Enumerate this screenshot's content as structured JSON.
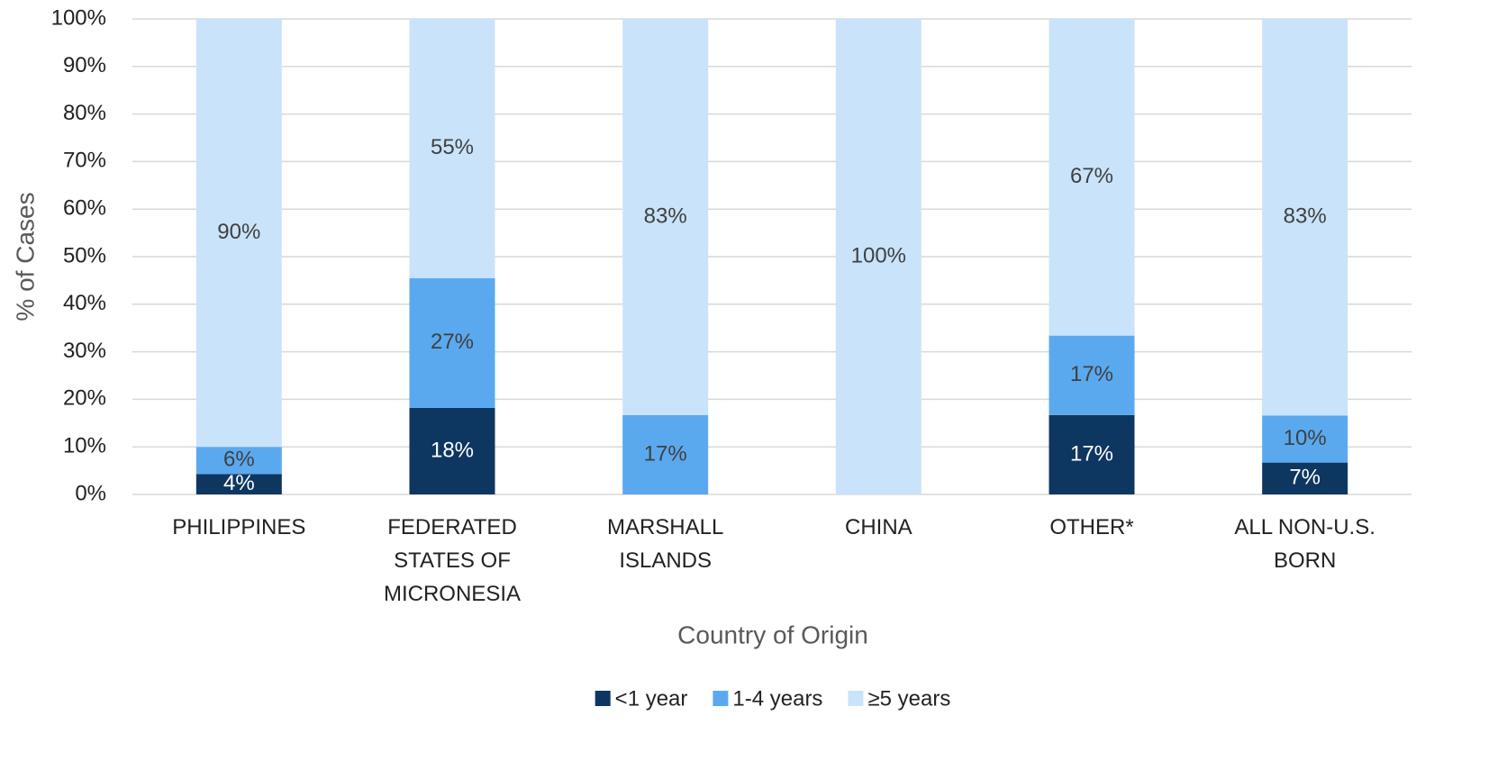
{
  "chart_data": {
    "type": "stacked_bar",
    "categories": [
      "PHILIPPINES",
      "FEDERATED STATES OF MICRONESIA",
      "MARSHALL ISLANDS",
      "CHINA",
      "OTHER*",
      "ALL NON-U.S. BORN"
    ],
    "series": [
      {
        "name": "<1 year",
        "color": "#0d3761",
        "values": [
          4.3,
          18.2,
          0,
          0,
          16.7,
          6.7
        ],
        "value_labels": [
          "4%",
          "18%",
          null,
          null,
          "17%",
          "7%"
        ]
      },
      {
        "name": "1-4 years",
        "color": "#5aa9ef",
        "values": [
          5.7,
          27.3,
          16.7,
          0,
          16.7,
          9.9
        ],
        "value_labels": [
          "6%",
          "27%",
          "17%",
          null,
          "17%",
          "10%"
        ]
      },
      {
        "name": "≥5 years",
        "color": "#c9e3fa",
        "values": [
          90,
          54.5,
          83.3,
          100,
          66.6,
          83.4
        ],
        "value_labels": [
          "90%",
          "55%",
          "83%",
          "100%",
          "67%",
          "83%"
        ]
      }
    ],
    "xlabel": "Country of Origin",
    "ylabel": "% of Cases",
    "ylim": [
      0,
      100
    ],
    "yticks": [
      {
        "value": 0,
        "label": "0%"
      },
      {
        "value": 10,
        "label": "10%"
      },
      {
        "value": 20,
        "label": "20%"
      },
      {
        "value": 30,
        "label": "30%"
      },
      {
        "value": 40,
        "label": "40%"
      },
      {
        "value": 50,
        "label": "50%"
      },
      {
        "value": 60,
        "label": "60%"
      },
      {
        "value": 70,
        "label": "70%"
      },
      {
        "value": 80,
        "label": "80%"
      },
      {
        "value": 90,
        "label": "90%"
      },
      {
        "value": 100,
        "label": "100%"
      }
    ],
    "grid": true,
    "legend": "bottom"
  }
}
